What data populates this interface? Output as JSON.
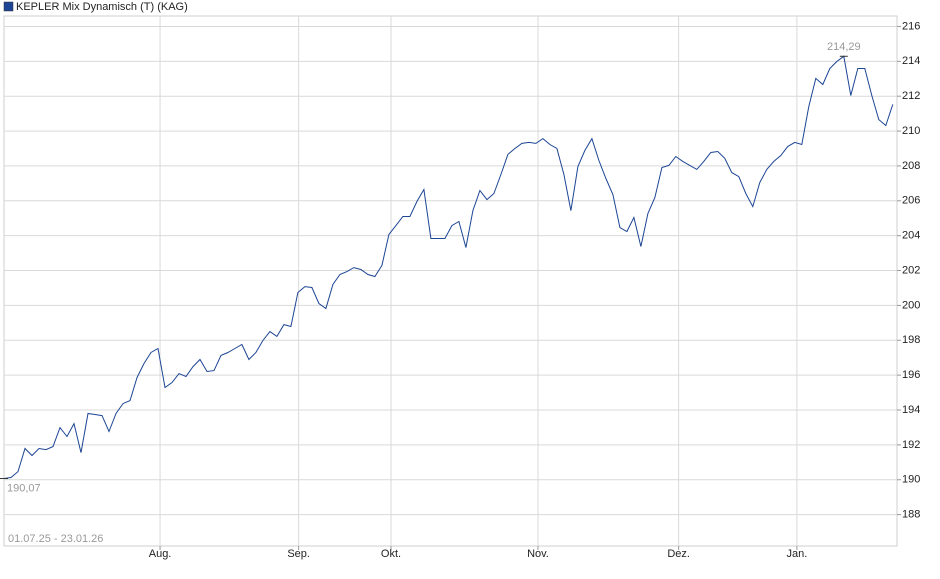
{
  "chart_data": {
    "type": "line",
    "title": "KEPLER Mix Dynamisch (T) (KAG)",
    "date_range": "01.07.25 - 23.01.26",
    "series": [
      {
        "name": "KEPLER Mix Dynamisch (T) (KAG)",
        "color": "#1c4595",
        "values": [
          190.07,
          190.13,
          190.47,
          191.79,
          191.39,
          191.79,
          191.73,
          191.9,
          192.99,
          192.48,
          193.22,
          191.56,
          193.8,
          193.74,
          193.68,
          192.77,
          193.8,
          194.37,
          194.54,
          195.86,
          196.67,
          197.3,
          197.53,
          195.29,
          195.58,
          196.09,
          195.92,
          196.49,
          196.9,
          196.21,
          196.26,
          197.13,
          197.3,
          197.53,
          197.76,
          196.9,
          197.3,
          197.99,
          198.5,
          198.22,
          198.9,
          198.79,
          200.74,
          201.08,
          201.03,
          200.11,
          199.82,
          201.2,
          201.77,
          201.94,
          202.17,
          202.06,
          201.77,
          201.66,
          202.29,
          204.07,
          204.58,
          205.1,
          205.1,
          205.96,
          206.65,
          203.84,
          203.84,
          203.84,
          204.58,
          204.81,
          203.32,
          205.44,
          206.59,
          206.07,
          206.42,
          207.51,
          208.66,
          209.0,
          209.29,
          209.35,
          209.29,
          209.57,
          209.23,
          209.0,
          207.51,
          205.44,
          207.97,
          208.89,
          209.57,
          208.31,
          207.28,
          206.36,
          204.47,
          204.24,
          205.04,
          203.38,
          205.27,
          206.19,
          207.91,
          208.03,
          208.54,
          208.26,
          208.03,
          207.8,
          208.26,
          208.77,
          208.83,
          208.43,
          207.62,
          207.39,
          206.42,
          205.67,
          207.05,
          207.8,
          208.26,
          208.6,
          209.12,
          209.35,
          209.23,
          211.41,
          213.02,
          212.67,
          213.59,
          213.99,
          214.29,
          212.04,
          213.59,
          213.59,
          212.04,
          210.66,
          210.32,
          211.53
        ],
        "value_labels": [
          "190,07",
          null,
          null,
          null,
          null,
          null,
          null,
          null,
          null,
          null,
          null,
          null,
          null,
          null,
          null,
          null,
          null,
          null,
          null,
          null,
          null,
          null,
          null,
          null,
          null,
          null,
          null,
          null,
          null,
          null,
          null,
          null,
          null,
          null,
          null,
          null,
          null,
          null,
          null,
          null,
          null,
          null,
          null,
          null,
          null,
          null,
          null,
          null,
          null,
          null,
          null,
          null,
          null,
          null,
          null,
          null,
          null,
          null,
          null,
          null,
          null,
          null,
          null,
          null,
          null,
          null,
          null,
          null,
          null,
          null,
          null,
          null,
          null,
          null,
          null,
          null,
          null,
          null,
          null,
          null,
          null,
          null,
          null,
          null,
          null,
          null,
          null,
          null,
          null,
          null,
          null,
          null,
          null,
          null,
          null,
          null,
          null,
          null,
          null,
          null,
          null,
          null,
          null,
          null,
          null,
          null,
          null,
          null,
          null,
          null,
          null,
          null,
          null,
          null,
          null,
          null,
          null,
          null,
          null,
          null,
          "214,29",
          null,
          null,
          null,
          null,
          null,
          null,
          null
        ]
      }
    ],
    "xlim": [
      0,
      127.6
    ],
    "xticks": [
      {
        "value": 22.3,
        "label": "Aug."
      },
      {
        "value": 42.1,
        "label": "Sep."
      },
      {
        "value": 55.3,
        "label": "Okt."
      },
      {
        "value": 76.3,
        "label": "Nov."
      },
      {
        "value": 96.4,
        "label": "Dez."
      },
      {
        "value": 113.3,
        "label": "Jan."
      }
    ],
    "ylim": [
      186.2,
      216.6
    ],
    "yticks": [
      188,
      190,
      192,
      194,
      196,
      198,
      200,
      202,
      204,
      206,
      208,
      210,
      212,
      214,
      216
    ],
    "grid": true
  }
}
